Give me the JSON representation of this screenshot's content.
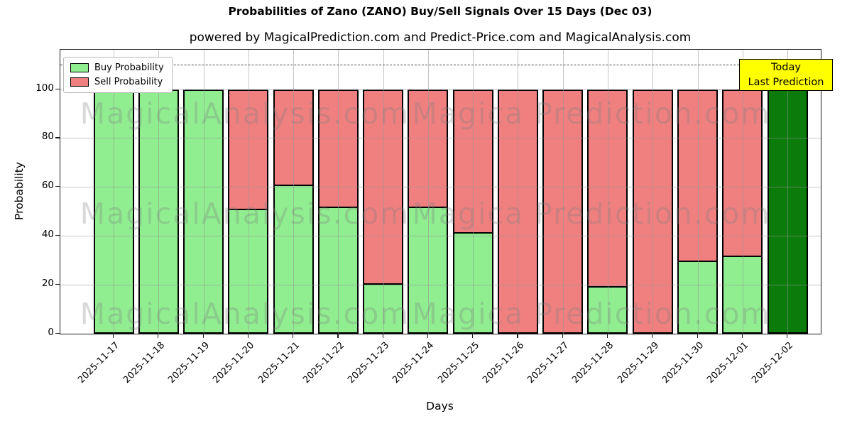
{
  "chart_data": {
    "type": "bar",
    "stacked": true,
    "title": "Probabilities of Zano (ZANO) Buy/Sell Signals Over 15 Days (Dec 03)",
    "subtitle": "powered by MagicalPrediction.com and Predict-Price.com and MagicalAnalysis.com",
    "xlabel": "Days",
    "ylabel": "Probability",
    "categories": [
      "2025-11-17",
      "2025-11-18",
      "2025-11-19",
      "2025-11-20",
      "2025-11-21",
      "2025-11-22",
      "2025-11-23",
      "2025-11-24",
      "2025-11-25",
      "2025-11-26",
      "2025-11-27",
      "2025-11-28",
      "2025-11-29",
      "2025-11-30",
      "2025-12-01",
      "2025-12-02"
    ],
    "series": [
      {
        "name": "Buy Probability",
        "color": "#90EE90",
        "values": [
          100,
          100,
          100,
          51,
          61,
          52,
          20.5,
          52,
          41.5,
          0,
          0,
          19.5,
          0,
          30,
          32,
          100
        ]
      },
      {
        "name": "Sell Probability",
        "color": "#F08080",
        "values": [
          0,
          0,
          0,
          49,
          39,
          48,
          79.5,
          48,
          58.5,
          100,
          100,
          80.5,
          100,
          70,
          68,
          0
        ]
      }
    ],
    "today_bar": {
      "category": "2025-12-02",
      "index": 15,
      "color": "#0B7B0B",
      "value": 100
    },
    "bar_edge_color": "#000000",
    "yticks": [
      0,
      20,
      40,
      60,
      80,
      100
    ],
    "ylim": [
      0,
      116
    ],
    "reference_line": {
      "y": 110,
      "style": "dashed",
      "color": "#4a4a4a"
    },
    "grid": true,
    "legend_position": "upper-left",
    "annotation": {
      "line1": "Today",
      "line2": "Last Prediction",
      "bg_color": "#ffff00"
    },
    "watermarks": {
      "left": "MagicalAnalysis.com",
      "right": "Magica Prediction.com",
      "rows": 3
    }
  }
}
